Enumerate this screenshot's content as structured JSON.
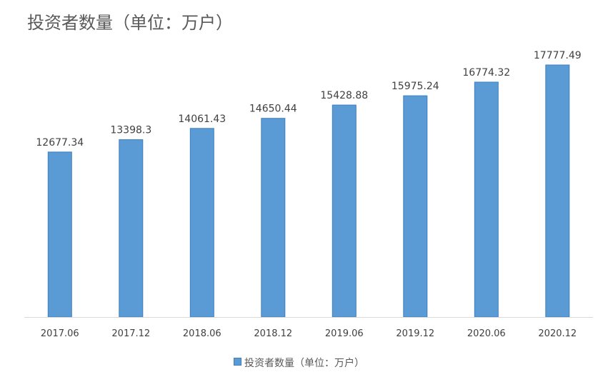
{
  "chart_data": {
    "type": "bar",
    "title": "投资者数量（单位：万户）",
    "categories": [
      "2017.06",
      "2017.12",
      "2018.06",
      "2018.12",
      "2019.06",
      "2019.12",
      "2020.06",
      "2020.12"
    ],
    "series": [
      {
        "name": "投资者数量（单位：万户）",
        "values": [
          12677.34,
          13398.3,
          14061.43,
          14650.44,
          15428.88,
          15975.24,
          16774.32,
          17777.49
        ],
        "labels": [
          "12677.34",
          "13398.3",
          "14061.43",
          "14650.44",
          "15428.88",
          "15975.24",
          "16774.32",
          "17777.49"
        ]
      }
    ],
    "ylim": [
      3000,
      18700
    ],
    "grid": false,
    "legend": "bottom",
    "bar_color": "#5B9BD5",
    "bar_edge_color": "#3e7fbf",
    "text_color": "#404040"
  }
}
